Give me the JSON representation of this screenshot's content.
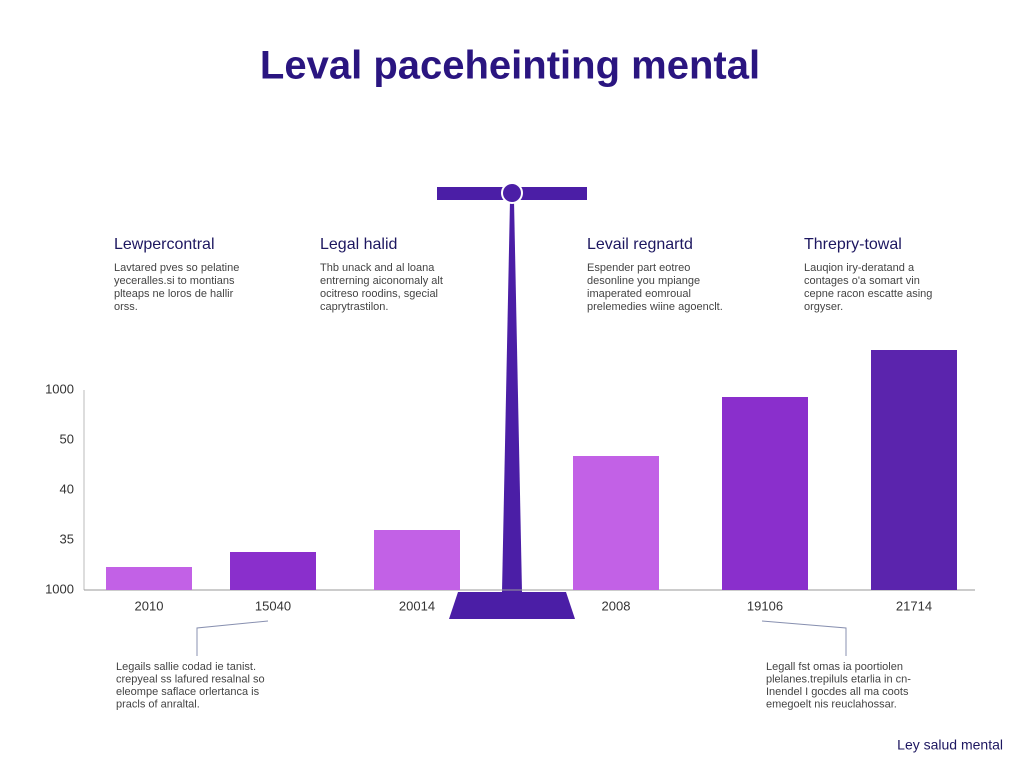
{
  "chart_data": {
    "type": "bar",
    "title": "Leval paceheinting mental",
    "categories": [
      "2010",
      "15040",
      "20014",
      "2008",
      "19106",
      "21714"
    ],
    "values": [
      0.46,
      0.76,
      1.2,
      2.68,
      3.86,
      4.8
    ],
    "colors": [
      "#c261e6",
      "#8a2fcc",
      "#c261e6",
      "#c261e6",
      "#8a2fcc",
      "#5b24ad"
    ],
    "ylim": [
      0,
      4.8
    ],
    "y_axis_labels": [
      "1000",
      "35",
      "40",
      "50",
      "1000"
    ],
    "panels": [
      {
        "heading": "Lewpercontral",
        "lines": [
          "Lavtared pves so pelatine",
          "yeceralles.si to montians",
          "plteaps ne loros de hallir",
          "orss."
        ]
      },
      {
        "heading": "Legal halid",
        "lines": [
          "Thb unack and al loana",
          "entrerning aiconomaly alt",
          "ocitreso roodins, sgecial",
          "caprytrastilon."
        ]
      },
      {
        "heading": "Levail regnartd",
        "lines": [
          "Espender part eotreo",
          "desonline you mpiange",
          "imaperated eomroual",
          "prelemedies wiine agoenclt."
        ]
      },
      {
        "heading": "Threpry-towal",
        "lines": [
          "Lauqion iry-deratand a",
          "contages o'a somart vin",
          "cepne racon escatte asing",
          "orgyser."
        ]
      }
    ],
    "notes": [
      [
        "Legails sallie codad ie tanist.",
        "crepyeal ss lafured resalnal so",
        "eleompe saflace orlertanca is",
        "pracls of anraltal."
      ],
      [
        "Legall fst omas ia poortiolen",
        "plelanes.trepiluls etarlia in cn-",
        "Inendel I gocdes all ma coots",
        "emegoelt nis reuclahossar."
      ]
    ],
    "footer": "Ley salud mental"
  }
}
